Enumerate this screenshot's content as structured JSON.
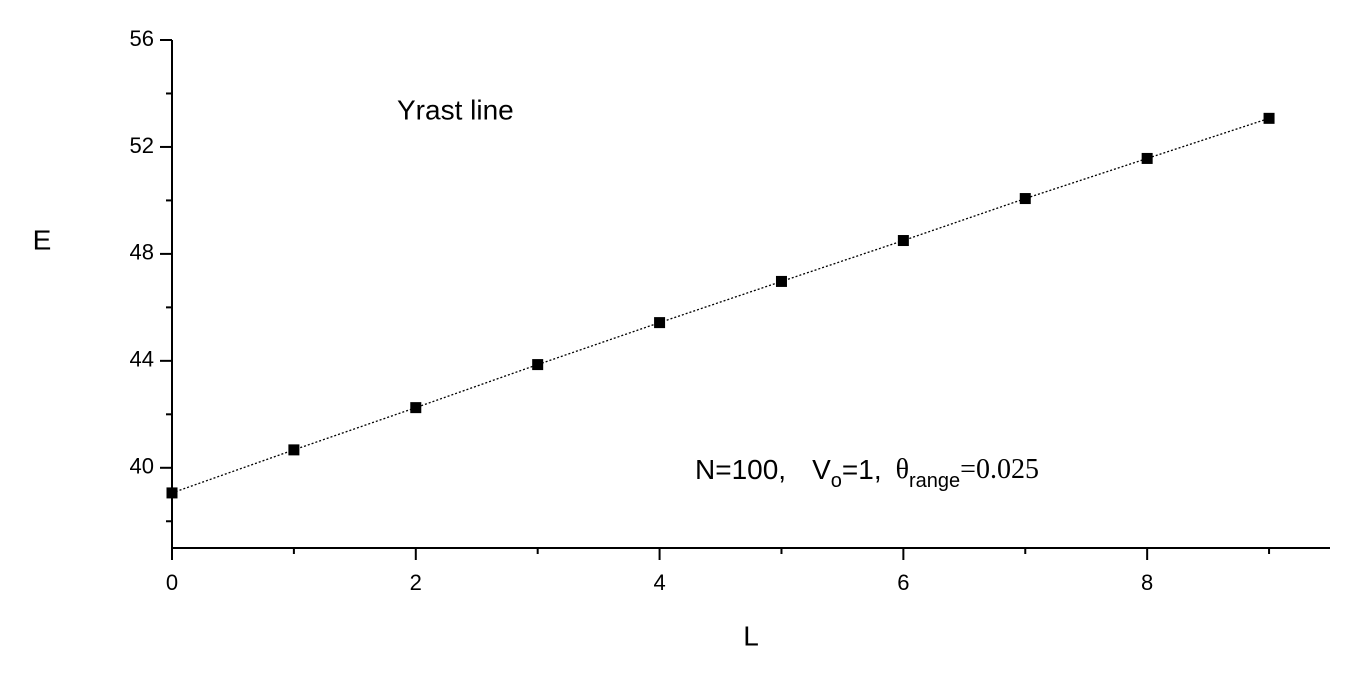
{
  "chart_data": {
    "type": "line",
    "xlabel": "L",
    "ylabel": "E",
    "annotation": "Yrast line",
    "params": {
      "parts": [
        "N=100,",
        "V",
        "o",
        "=1,",
        "θ",
        "range",
        "=0.025"
      ]
    },
    "x": [
      0,
      1,
      2,
      3,
      4,
      5,
      6,
      7,
      8,
      9
    ],
    "series": [
      {
        "color": "#000000",
        "values": [
          39.06,
          40.67,
          42.25,
          43.86,
          45.43,
          46.97,
          48.5,
          50.07,
          51.57,
          53.07
        ]
      }
    ],
    "xlim": [
      0,
      9.5
    ],
    "xticks": [
      0,
      2,
      4,
      6,
      8
    ],
    "x_minor_ticks": [
      1,
      3,
      5,
      7,
      9
    ],
    "ylim": [
      37,
      56
    ],
    "yticks": [
      40,
      44,
      48,
      52,
      56
    ],
    "y_minor_ticks": [
      38,
      42,
      46,
      50,
      54
    ]
  }
}
